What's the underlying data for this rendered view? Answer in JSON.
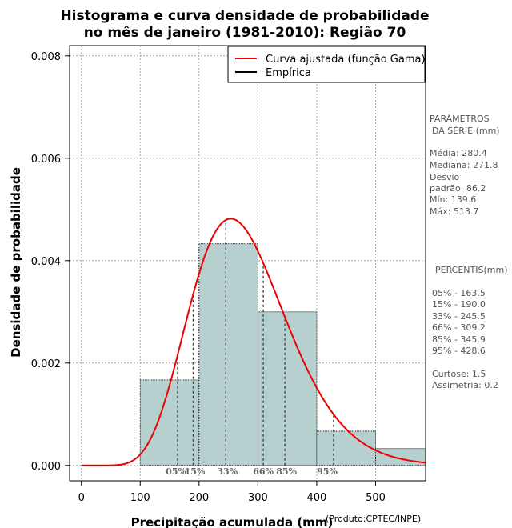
{
  "chart_data": {
    "type": "bar",
    "title": [
      "Histograma e curva densidade de probabilidade",
      "no mês de janeiro (1981-2010): Região 70"
    ],
    "xlabel": "Precipitação acumulada (mm)",
    "ylabel": "Densidade de probabilidade",
    "credit": "(Produto:CPTEC/INPE)",
    "xlim": [
      -20,
      585
    ],
    "ylim": [
      -0.0003,
      0.0082
    ],
    "xticks": [
      0,
      100,
      200,
      300,
      400,
      500
    ],
    "yticks": [
      0.0,
      0.002,
      0.004,
      0.006,
      0.008
    ],
    "ytick_labels": [
      "0.000",
      "0.002",
      "0.004",
      "0.006",
      "0.008"
    ],
    "grid": true,
    "bins": [
      {
        "from": 100,
        "to": 200,
        "density": 0.00167
      },
      {
        "from": 200,
        "to": 300,
        "density": 0.00433
      },
      {
        "from": 300,
        "to": 400,
        "density": 0.003
      },
      {
        "from": 400,
        "to": 500,
        "density": 0.00067
      },
      {
        "from": 500,
        "to": 600,
        "density": 0.00033
      }
    ],
    "gamma_fit": {
      "shape": 10.57,
      "scale": 26.53
    },
    "legend": {
      "position": "top-right",
      "entries": [
        "Curva ajustada (função Gama)",
        "Empírica"
      ]
    },
    "percentiles": [
      {
        "label": "05%",
        "value": 163.5
      },
      {
        "label": "15%",
        "value": 190.0
      },
      {
        "label": "33%",
        "value": 245.5
      },
      {
        "label": "66%",
        "value": 309.2
      },
      {
        "label": "85%",
        "value": 345.9
      },
      {
        "label": "95%",
        "value": 428.6
      }
    ]
  },
  "colors": {
    "bar_fill": "#b6cfcf",
    "curve": "#ee0000",
    "grid": "#aaaaaa",
    "percentile_line": "#444444"
  },
  "side_panel": {
    "params_heading_1": "PARÂMETROS",
    "params_heading_2": "DA SÉRIE (mm)",
    "stats": [
      "Média:  280.4",
      "Mediana:  271.8",
      "Desvio",
      "padrão:  86.2",
      "Mín:  139.6",
      "Máx:  513.7"
    ],
    "percentis_heading": "PERCENTIS(mm)",
    "percentis": [
      "05% -  163.5",
      "15% -  190.0",
      "33% -  245.5",
      "66% -  309.2",
      "85% -  345.9",
      "95% -  428.6"
    ],
    "extra": [
      "Curtose:  1.5",
      "Assimetria:  0.2"
    ]
  }
}
